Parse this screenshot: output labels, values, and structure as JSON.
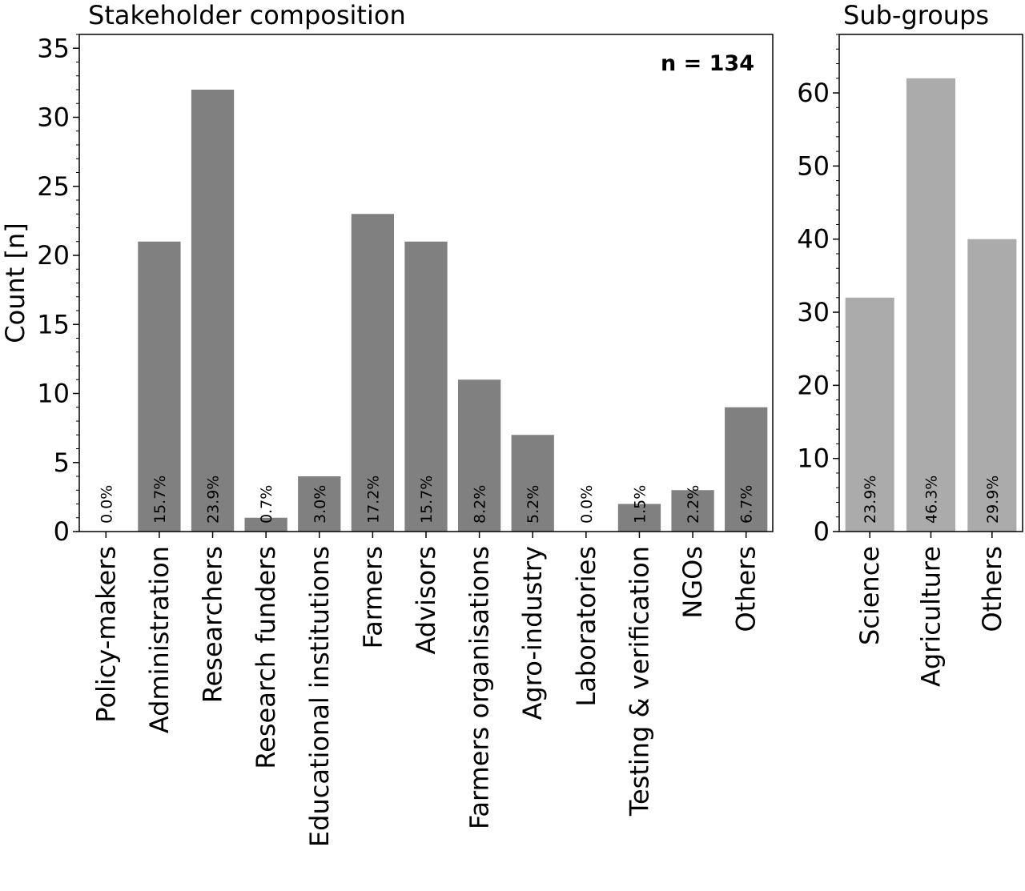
{
  "chart_data": [
    {
      "type": "bar",
      "title": "Stakeholder composition",
      "ylabel": "Count [n]",
      "xlabel": "",
      "annotation": "n = 134",
      "ylim": [
        0,
        36
      ],
      "yticks": [
        0,
        5,
        10,
        15,
        20,
        25,
        30,
        35
      ],
      "bar_color": "#808080",
      "categories": [
        "Policy-makers",
        "Administration",
        "Researchers",
        "Research funders",
        "Educational institutions",
        "Farmers",
        "Advisors",
        "Farmers organisations",
        "Agro-industry",
        "Laboratories",
        "Testing & verification",
        "NGOs",
        "Others"
      ],
      "values": [
        0,
        21,
        32,
        1,
        4,
        23,
        21,
        11,
        7,
        0,
        2,
        3,
        9
      ],
      "percent_labels": [
        "0.0%",
        "15.7%",
        "23.9%",
        "0.7%",
        "3.0%",
        "17.2%",
        "15.7%",
        "8.2%",
        "5.2%",
        "0.0%",
        "1.5%",
        "2.2%",
        "6.7%"
      ]
    },
    {
      "type": "bar",
      "title": "Sub-groups",
      "ylabel": "",
      "xlabel": "",
      "ylim": [
        0,
        68
      ],
      "yticks": [
        0,
        10,
        20,
        30,
        40,
        50,
        60
      ],
      "bar_color": "#ababab",
      "categories": [
        "Science",
        "Agriculture",
        "Others"
      ],
      "values": [
        32,
        62,
        40
      ],
      "percent_labels": [
        "23.9%",
        "46.3%",
        "29.9%"
      ]
    }
  ]
}
